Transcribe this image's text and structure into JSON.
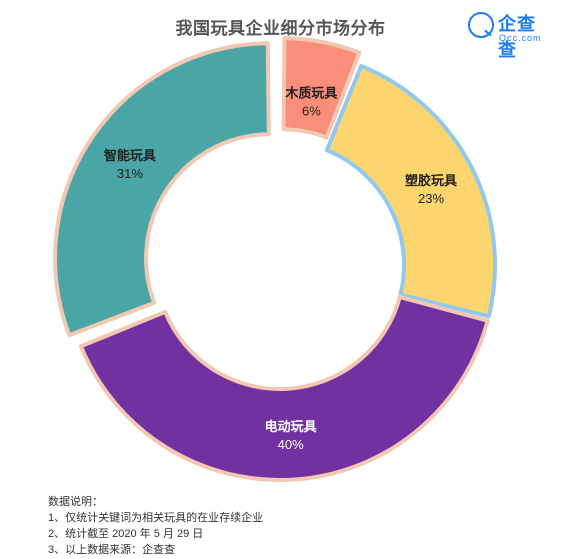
{
  "title": "我国玩具企业细分市场分布",
  "logo": {
    "name": "企查查",
    "sub": "Qcc.com"
  },
  "notes": {
    "heading": "数据说明：",
    "lines": [
      "1、仅统计关键词为相关玩具的在业存续企业",
      "2、统计截至 2020 年 5 月 29 日",
      "3、以上数据来源：企查查"
    ]
  },
  "chart_data": {
    "type": "pie",
    "donut": true,
    "slices": [
      {
        "label": "木质玩具",
        "value": 6,
        "value_label": "6%",
        "color": "#f98f7a",
        "border": "#f3c8b2",
        "exploded": true
      },
      {
        "label": "塑胶玩具",
        "value": 23,
        "value_label": "23%",
        "color": "#fdd56e",
        "border": "#90c9ef",
        "exploded": false
      },
      {
        "label": "电动玩具",
        "value": 40,
        "value_label": "40%",
        "color": "#7131a0",
        "border": "#f3c8b2",
        "exploded": false
      },
      {
        "label": "智能玩具",
        "value": 31,
        "value_label": "31%",
        "color": "#4aa6a6",
        "border": "#f3c8b2",
        "exploded": true
      }
    ]
  }
}
